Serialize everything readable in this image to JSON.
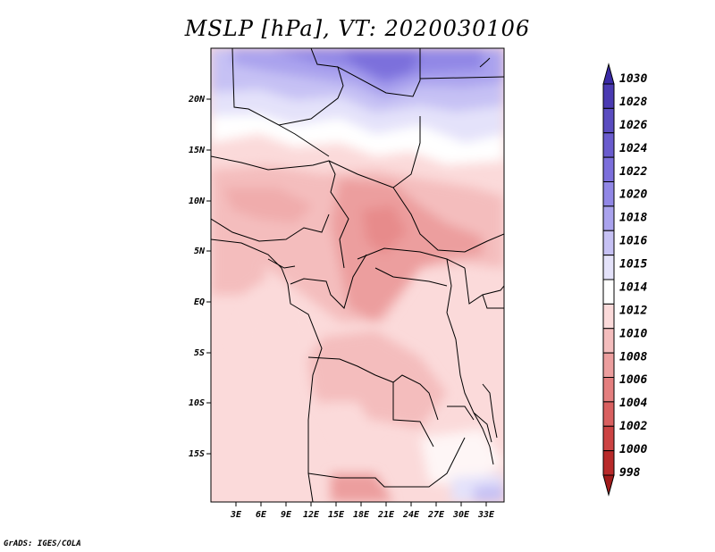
{
  "title": "MSLP [hPa], VT: 2020030106",
  "footer": "GrADS: IGES/COLA",
  "map": {
    "lat_labels": [
      "20N",
      "15N",
      "10N",
      "5N",
      "EQ",
      "5S",
      "10S",
      "15S"
    ],
    "lon_labels": [
      "3E",
      "6E",
      "9E",
      "12E",
      "15E",
      "18E",
      "21E",
      "24E",
      "27E",
      "30E",
      "33E"
    ]
  },
  "colorbar": {
    "levels": [
      "1030",
      "1028",
      "1026",
      "1024",
      "1022",
      "1020",
      "1018",
      "1016",
      "1015",
      "1014",
      "1012",
      "1010",
      "1008",
      "1006",
      "1004",
      "1002",
      "1000",
      "998"
    ],
    "colors": [
      "#3a2aa6",
      "#4a3ab2",
      "#5a4cc0",
      "#6a5cce",
      "#7c6fdc",
      "#9187e6",
      "#aaa3ee",
      "#c6c1f4",
      "#e4e2fa",
      "#ffffff",
      "#fbdada",
      "#f4bdbd",
      "#ec9e9e",
      "#e47f7f",
      "#d96060",
      "#cc4343",
      "#b82a2a",
      "#a11b1b"
    ]
  }
}
